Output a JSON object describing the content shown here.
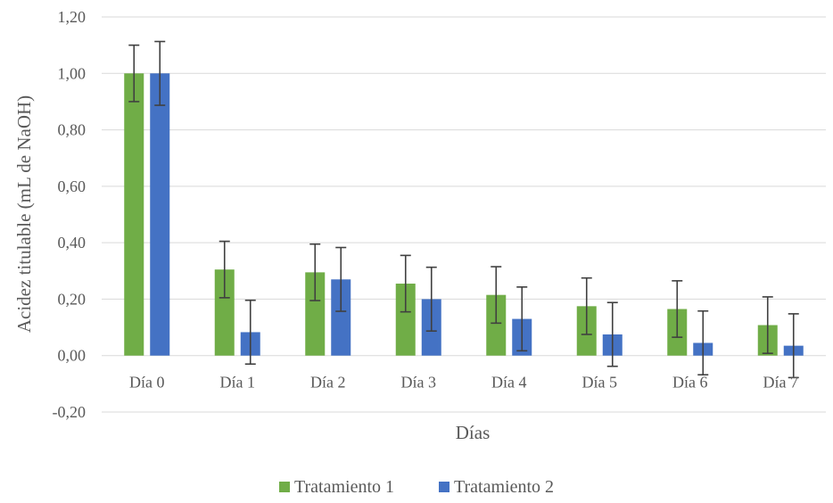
{
  "chart_data": {
    "type": "bar",
    "xlabel": "Días",
    "ylabel": "Acidez titulable (mL de NaOH)",
    "ylim": [
      -0.2,
      1.2
    ],
    "yticks": [
      -0.2,
      0.0,
      0.2,
      0.4,
      0.6,
      0.8,
      1.0,
      1.2
    ],
    "ytick_labels": [
      "-0,20",
      "0,00",
      "0,20",
      "0,40",
      "0,60",
      "0,80",
      "1,00",
      "1,20"
    ],
    "grid": true,
    "legend_position": "bottom",
    "categories": [
      "Día 0",
      "Día 1",
      "Día 2",
      "Día 3",
      "Día 4",
      "Día 5",
      "Día 6",
      "Día 7"
    ],
    "series": [
      {
        "name": "Tratamiento 1",
        "color": "#70ad47",
        "values": [
          1.0,
          0.305,
          0.295,
          0.255,
          0.215,
          0.175,
          0.165,
          0.108
        ],
        "error": [
          0.1,
          0.1,
          0.1,
          0.1,
          0.1,
          0.1,
          0.1,
          0.1
        ]
      },
      {
        "name": "Tratamiento 2",
        "color": "#4472c4",
        "values": [
          1.0,
          0.083,
          0.27,
          0.2,
          0.13,
          0.075,
          0.045,
          0.035
        ],
        "error": [
          0.113,
          0.113,
          0.113,
          0.113,
          0.113,
          0.113,
          0.113,
          0.113
        ]
      }
    ]
  }
}
